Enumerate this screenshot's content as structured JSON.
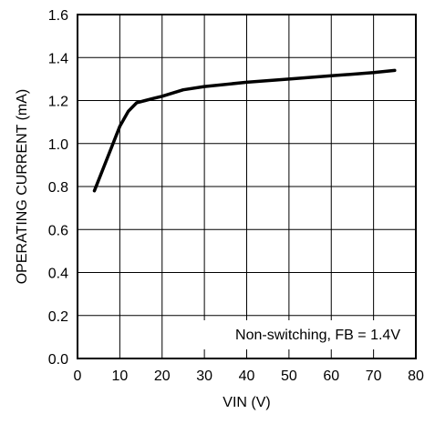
{
  "chart_data": {
    "type": "line",
    "xlabel": "VIN (V)",
    "ylabel": "OPERATING CURRENT (mA)",
    "xlim": [
      0,
      80
    ],
    "ylim": [
      0.0,
      1.6
    ],
    "xticks": [
      "0",
      "10",
      "20",
      "30",
      "40",
      "50",
      "60",
      "70",
      "80"
    ],
    "yticks": [
      "0.0",
      "0.2",
      "0.4",
      "0.6",
      "0.8",
      "1.0",
      "1.2",
      "1.4",
      "1.6"
    ],
    "grid": true,
    "annotation": "Non-switching, FB = 1.4V",
    "series": [
      {
        "x": [
          4,
          6,
          8,
          10,
          12,
          14,
          16,
          18,
          20,
          25,
          30,
          40,
          50,
          60,
          70,
          75
        ],
        "y": [
          0.78,
          0.88,
          0.98,
          1.08,
          1.15,
          1.19,
          1.2,
          1.21,
          1.22,
          1.25,
          1.265,
          1.285,
          1.3,
          1.315,
          1.33,
          1.34
        ],
        "color": "#000000"
      }
    ]
  }
}
